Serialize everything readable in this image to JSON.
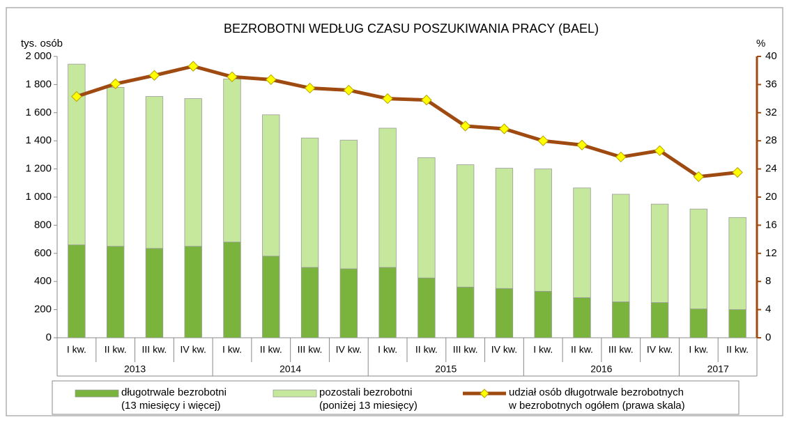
{
  "chart_data": {
    "type": "stacked_bar_line",
    "title": "BEZROBOTNI WEDŁUG CZASU POSZUKIWANIA PRACY (BAEL)",
    "y_label": "tys. osób",
    "y2_label": "%",
    "categories": [
      "I kw.",
      "II kw.",
      "III kw.",
      "IV kw.",
      "I kw.",
      "II kw.",
      "III kw.",
      "IV kw.",
      "I kw.",
      "II kw.",
      "III kw.",
      "IV kw.",
      "I kw.",
      "II kw.",
      "III kw.",
      "IV kw.",
      "I kw.",
      "II kw."
    ],
    "year_groups": [
      {
        "label": "2013",
        "size": 4
      },
      {
        "label": "2014",
        "size": 4
      },
      {
        "label": "2015",
        "size": 4
      },
      {
        "label": "2016",
        "size": 4
      },
      {
        "label": "2017",
        "size": 2
      }
    ],
    "series": [
      {
        "name": "długotrwale bezrobotni\n(13 miesięcy i więcej)",
        "color": "#7ab43c",
        "kind": "bar",
        "values": [
          660,
          650,
          635,
          650,
          680,
          580,
          500,
          490,
          500,
          425,
          360,
          350,
          330,
          285,
          255,
          250,
          205,
          200
        ]
      },
      {
        "name": "pozostali bezrobotni\n(poniżej 13 miesięcy)",
        "color": "#c6e89c",
        "kind": "bar",
        "values": [
          1285,
          1130,
          1080,
          1050,
          1160,
          1005,
          920,
          915,
          990,
          855,
          870,
          855,
          870,
          780,
          765,
          700,
          710,
          655
        ]
      },
      {
        "name": "udział osób długotrwale bezrobotnych\nw bezrobotnych ogółem (prawa skala)",
        "color": "#9e4a10",
        "kind": "line",
        "axis": "y2",
        "values": [
          34.3,
          36.1,
          37.3,
          38.6,
          37.1,
          36.7,
          35.5,
          35.2,
          34.0,
          33.8,
          30.1,
          29.7,
          28.0,
          27.4,
          25.7,
          26.6,
          22.9,
          23.5
        ]
      }
    ],
    "ylim": [
      0,
      2000
    ],
    "yticks": [
      0,
      200,
      400,
      600,
      800,
      {
        "value": 1000,
        "label": "1 000"
      },
      {
        "value": 1200,
        "label": "1 200"
      },
      {
        "value": 1400,
        "label": "1 400"
      },
      {
        "value": 1600,
        "label": "1 600"
      },
      {
        "value": 1800,
        "label": "1 800"
      },
      {
        "value": 2000,
        "label": "2 000"
      }
    ],
    "y2lim": [
      0,
      40
    ],
    "y2ticks": [
      0,
      4,
      8,
      12,
      16,
      20,
      24,
      28,
      32,
      36,
      40
    ],
    "marker_color": "#ffff00"
  }
}
